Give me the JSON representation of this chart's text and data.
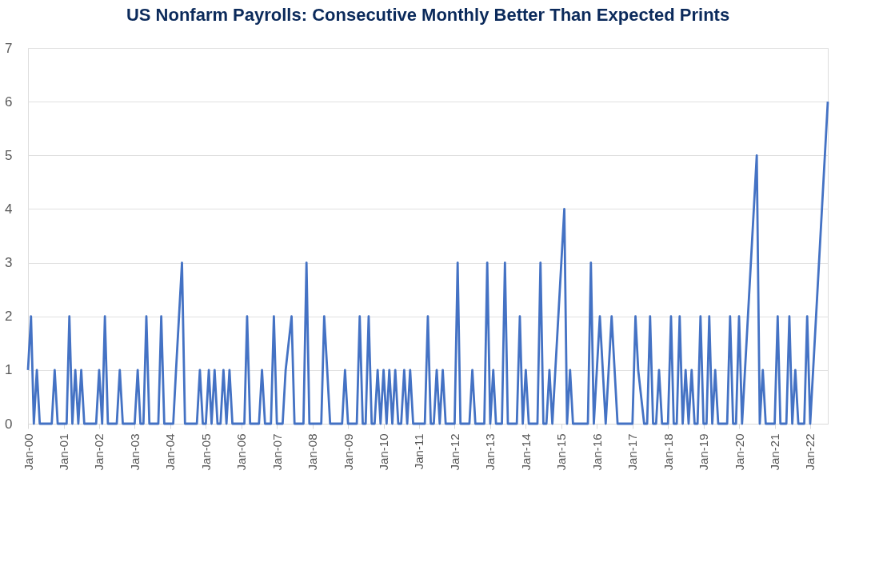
{
  "chart_data": {
    "type": "line",
    "title": "US Nonfarm Payrolls: Consecutive Monthly Better Than Expected Prints",
    "x": [
      "2000-01",
      "2000-02",
      "2000-03",
      "2000-04",
      "2000-05",
      "2000-09",
      "2000-10",
      "2000-11",
      "2001-02",
      "2001-03",
      "2001-04",
      "2001-05",
      "2001-06",
      "2001-07",
      "2001-08",
      "2001-12",
      "2002-01",
      "2002-02",
      "2002-03",
      "2002-04",
      "2002-07",
      "2002-08",
      "2002-09",
      "2003-01",
      "2003-02",
      "2003-03",
      "2003-04",
      "2003-05",
      "2003-06",
      "2003-09",
      "2003-10",
      "2003-11",
      "2004-02",
      "2004-03",
      "2004-05",
      "2004-06",
      "2004-10",
      "2004-11",
      "2004-12",
      "2005-01",
      "2005-02",
      "2005-03",
      "2005-04",
      "2005-05",
      "2005-06",
      "2005-07",
      "2005-08",
      "2005-09",
      "2005-10",
      "2006-02",
      "2006-03",
      "2006-04",
      "2006-07",
      "2006-08",
      "2006-09",
      "2006-11",
      "2006-12",
      "2007-01",
      "2007-03",
      "2007-04",
      "2007-06",
      "2007-07",
      "2007-10",
      "2007-11",
      "2007-12",
      "2008-04",
      "2008-05",
      "2008-06",
      "2008-07",
      "2008-11",
      "2008-12",
      "2009-01",
      "2009-04",
      "2009-05",
      "2009-06",
      "2009-07",
      "2009-08",
      "2009-09",
      "2009-10",
      "2009-11",
      "2009-12",
      "2010-01",
      "2010-02",
      "2010-03",
      "2010-04",
      "2010-05",
      "2010-06",
      "2010-07",
      "2010-08",
      "2010-09",
      "2010-10",
      "2010-11",
      "2011-03",
      "2011-04",
      "2011-05",
      "2011-06",
      "2011-07",
      "2011-08",
      "2011-09",
      "2011-10",
      "2012-01",
      "2012-02",
      "2012-03",
      "2012-06",
      "2012-07",
      "2012-08",
      "2012-11",
      "2012-12",
      "2013-01",
      "2013-02",
      "2013-03",
      "2013-05",
      "2013-06",
      "2013-07",
      "2013-10",
      "2013-11",
      "2013-12",
      "2014-01",
      "2014-02",
      "2014-05",
      "2014-06",
      "2014-07",
      "2014-08",
      "2014-09",
      "2014-10",
      "2015-02",
      "2015-03",
      "2015-04",
      "2015-05",
      "2015-10",
      "2015-11",
      "2015-12",
      "2016-02",
      "2016-04",
      "2016-06",
      "2016-08",
      "2017-01",
      "2017-02",
      "2017-03",
      "2017-05",
      "2017-06",
      "2017-07",
      "2017-08",
      "2017-09",
      "2017-10",
      "2017-11",
      "2018-01",
      "2018-02",
      "2018-03",
      "2018-04",
      "2018-05",
      "2018-06",
      "2018-07",
      "2018-08",
      "2018-09",
      "2018-10",
      "2018-11",
      "2018-12",
      "2019-01",
      "2019-02",
      "2019-03",
      "2019-04",
      "2019-05",
      "2019-06",
      "2019-09",
      "2019-10",
      "2019-11",
      "2019-12",
      "2020-01",
      "2020-02",
      "2020-07",
      "2020-08",
      "2020-09",
      "2020-10",
      "2021-01",
      "2021-02",
      "2021-03",
      "2021-05",
      "2021-06",
      "2021-07",
      "2021-08",
      "2021-09",
      "2021-11",
      "2021-12",
      "2022-01",
      "2022-07"
    ],
    "series": [
      {
        "color": "#4472c4",
        "values": [
          1,
          2,
          0,
          1,
          0,
          0,
          1,
          0,
          0,
          2,
          0,
          1,
          0,
          1,
          0,
          0,
          1,
          0,
          2,
          0,
          0,
          1,
          0,
          0,
          1,
          0,
          0,
          2,
          0,
          0,
          2,
          0,
          0,
          1,
          3,
          0,
          0,
          1,
          0,
          0,
          1,
          0,
          1,
          0,
          0,
          1,
          0,
          1,
          0,
          0,
          2,
          0,
          0,
          1,
          0,
          0,
          2,
          0,
          0,
          1,
          2,
          0,
          0,
          3,
          0,
          0,
          2,
          1,
          0,
          0,
          1,
          0,
          0,
          2,
          0,
          0,
          2,
          0,
          0,
          1,
          0,
          1,
          0,
          1,
          0,
          1,
          0,
          0,
          1,
          0,
          1,
          0,
          0,
          2,
          0,
          0,
          1,
          0,
          1,
          0,
          0,
          3,
          0,
          0,
          1,
          0,
          0,
          3,
          0,
          1,
          0,
          0,
          3,
          0,
          0,
          2,
          0,
          1,
          0,
          0,
          3,
          0,
          0,
          1,
          0,
          4,
          0,
          1,
          0,
          0,
          3,
          0,
          2,
          0,
          2,
          0,
          0,
          2,
          1,
          0,
          0,
          2,
          0,
          0,
          1,
          0,
          0,
          2,
          0,
          0,
          2,
          0,
          1,
          0,
          1,
          0,
          0,
          2,
          0,
          0,
          2,
          0,
          1,
          0,
          0,
          2,
          0,
          0,
          2,
          0,
          5,
          0,
          1,
          0,
          0,
          2,
          0,
          0,
          2,
          0,
          1,
          0,
          0,
          2,
          0,
          6
        ]
      }
    ],
    "xlim": [
      "2000-01",
      "2022-07"
    ],
    "xticks": [
      {
        "value": "2000-01",
        "label": "Jan-00"
      },
      {
        "value": "2001-01",
        "label": "Jan-01"
      },
      {
        "value": "2002-01",
        "label": "Jan-02"
      },
      {
        "value": "2003-01",
        "label": "Jan-03"
      },
      {
        "value": "2004-01",
        "label": "Jan-04"
      },
      {
        "value": "2005-01",
        "label": "Jan-05"
      },
      {
        "value": "2006-01",
        "label": "Jan-06"
      },
      {
        "value": "2007-01",
        "label": "Jan-07"
      },
      {
        "value": "2008-01",
        "label": "Jan-08"
      },
      {
        "value": "2009-01",
        "label": "Jan-09"
      },
      {
        "value": "2010-01",
        "label": "Jan-10"
      },
      {
        "value": "2011-01",
        "label": "Jan-11"
      },
      {
        "value": "2012-01",
        "label": "Jan-12"
      },
      {
        "value": "2013-01",
        "label": "Jan-13"
      },
      {
        "value": "2014-01",
        "label": "Jan-14"
      },
      {
        "value": "2015-01",
        "label": "Jan-15"
      },
      {
        "value": "2016-01",
        "label": "Jan-16"
      },
      {
        "value": "2017-01",
        "label": "Jan-17"
      },
      {
        "value": "2018-01",
        "label": "Jan-18"
      },
      {
        "value": "2019-01",
        "label": "Jan-19"
      },
      {
        "value": "2020-01",
        "label": "Jan-20"
      },
      {
        "value": "2021-01",
        "label": "Jan-21"
      },
      {
        "value": "2022-01",
        "label": "Jan-22"
      }
    ],
    "ylim": [
      0,
      7
    ],
    "yticks": [
      0,
      1,
      2,
      3,
      4,
      5,
      6,
      7
    ],
    "grid": "y",
    "marker": "none",
    "line_style": "solid"
  }
}
